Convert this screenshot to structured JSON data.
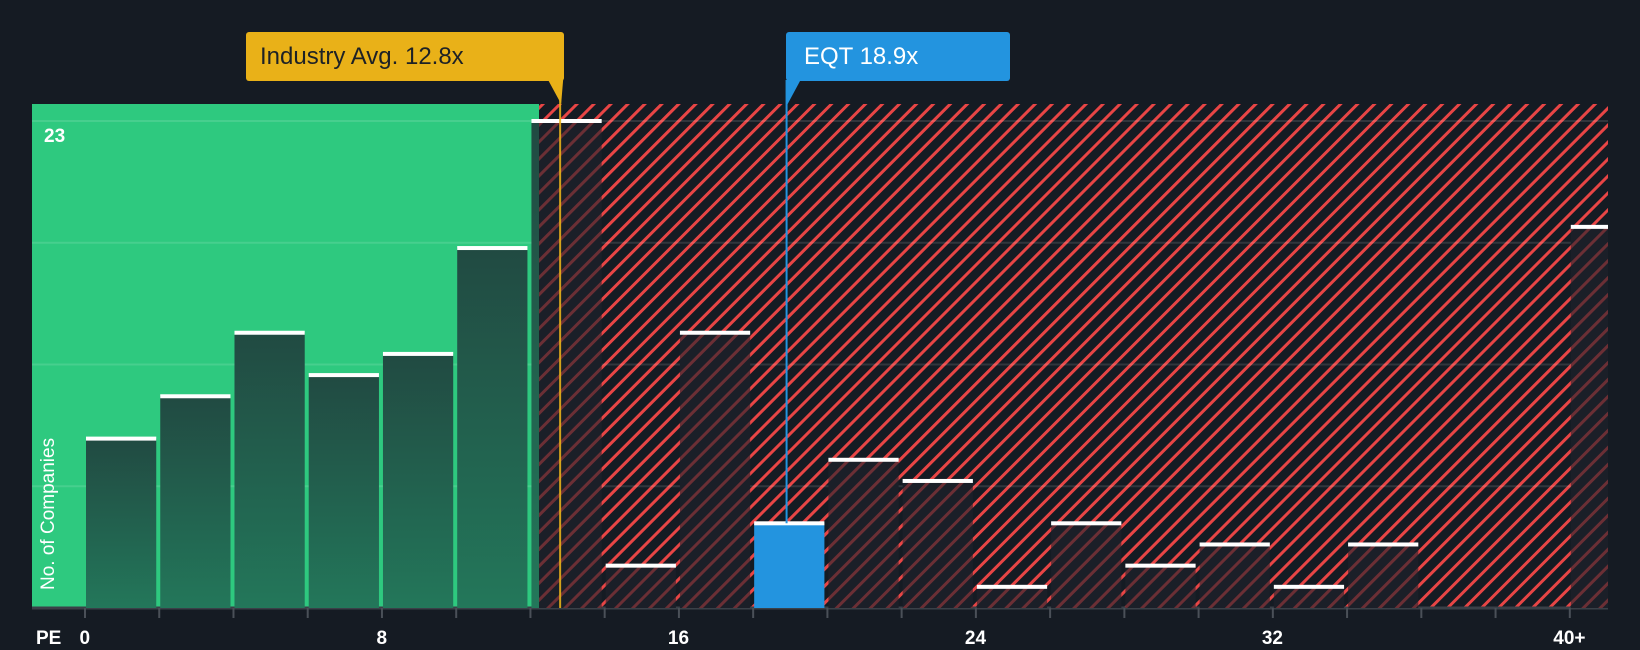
{
  "chart_data": {
    "type": "bar",
    "title": "",
    "xlabel": "PE",
    "ylabel": "No. of Companies",
    "x_tick_labels": [
      "0",
      "8",
      "16",
      "24",
      "32",
      "40+"
    ],
    "y_tick_labels": [
      "23"
    ],
    "ylim": [
      0,
      23
    ],
    "xlim": [
      0,
      41
    ],
    "bin_width": 2,
    "categories": [
      "0-2",
      "2-4",
      "4-6",
      "6-8",
      "8-10",
      "10-12",
      "12-14",
      "14-16",
      "16-18",
      "18-20",
      "20-22",
      "22-24",
      "24-26",
      "26-28",
      "28-30",
      "30-32",
      "32-34",
      "34-36",
      "36-38",
      "38-40",
      "40+"
    ],
    "bin_starts": [
      0,
      2,
      4,
      6,
      8,
      10,
      12,
      14,
      16,
      18,
      20,
      22,
      24,
      26,
      28,
      30,
      32,
      34,
      36,
      38,
      40
    ],
    "values": [
      8,
      10,
      13,
      11,
      12,
      17,
      23,
      2,
      13,
      4,
      7,
      6,
      1,
      4,
      2,
      3,
      1,
      3,
      0,
      0,
      18
    ],
    "highlight_bin_index": 9,
    "annotations": [
      {
        "label": "Industry Avg. 12.8x",
        "value": 12.8,
        "color": "#e9b118"
      },
      {
        "label": "EQT 18.9x",
        "value": 18.9,
        "color": "#2394df"
      }
    ],
    "regions": [
      {
        "name": "below-average",
        "from": 0,
        "to": 12.8,
        "color": "#2ec97f"
      },
      {
        "name": "above-average",
        "from": 12.8,
        "to": 41,
        "color": "#e84545",
        "pattern": "diagonal-hatch"
      }
    ],
    "grid": true,
    "legend": null
  },
  "labels": {
    "industry_callout": "Industry Avg. 12.8x",
    "company_callout": "EQT 18.9x",
    "y_axis_title": "No. of Companies",
    "x_axis_title": "PE",
    "y_max_label": "23"
  },
  "colors": {
    "background": "#151b23",
    "green_region": "#2ec97f",
    "bar_dark_top": "#214a42",
    "bar_dark_bottom": "#23775a",
    "hatch": "#e84545",
    "industry": "#e9b118",
    "company": "#2394df",
    "grid": "#2a3038"
  }
}
